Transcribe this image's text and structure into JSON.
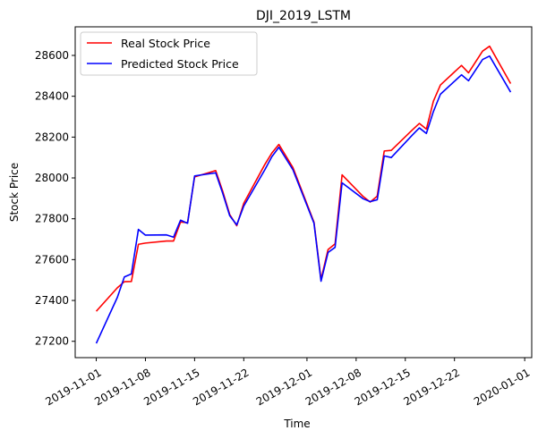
{
  "chart_data": {
    "type": "line",
    "title": "DJI_2019_LSTM",
    "xlabel": "Time",
    "ylabel": "Stock Price",
    "x_type": "date",
    "xlim": [
      "2019-10-29",
      "2020-01-02"
    ],
    "ylim": [
      27120,
      28740
    ],
    "x_ticks": [
      "2019-11-01",
      "2019-11-08",
      "2019-11-15",
      "2019-11-22",
      "2019-12-01",
      "2019-12-08",
      "2019-12-15",
      "2019-12-22",
      "2020-01-01"
    ],
    "x_tick_labels": [
      "2019-11-01",
      "2019-11-08",
      "2019-11-15",
      "2019-11-22",
      "2019-12-01",
      "2019-12-08",
      "2019-12-15",
      "2019-12-22",
      "2020-01-01"
    ],
    "y_ticks": [
      27200,
      27400,
      27600,
      27800,
      28000,
      28200,
      28400,
      28600
    ],
    "y_tick_labels": [
      "27200",
      "27400",
      "27600",
      "27800",
      "28000",
      "28200",
      "28400",
      "28600"
    ],
    "grid": false,
    "legend": {
      "position": "top-left"
    },
    "x": [
      "2019-11-01",
      "2019-11-04",
      "2019-11-05",
      "2019-11-06",
      "2019-11-07",
      "2019-11-08",
      "2019-11-11",
      "2019-11-12",
      "2019-11-13",
      "2019-11-14",
      "2019-11-15",
      "2019-11-18",
      "2019-11-19",
      "2019-11-20",
      "2019-11-21",
      "2019-11-22",
      "2019-11-25",
      "2019-11-26",
      "2019-11-27",
      "2019-11-29",
      "2019-12-02",
      "2019-12-03",
      "2019-12-04",
      "2019-12-05",
      "2019-12-06",
      "2019-12-09",
      "2019-12-10",
      "2019-12-11",
      "2019-12-12",
      "2019-12-13",
      "2019-12-16",
      "2019-12-17",
      "2019-12-18",
      "2019-12-19",
      "2019-12-20",
      "2019-12-23",
      "2019-12-24",
      "2019-12-26",
      "2019-12-27",
      "2019-12-30"
    ],
    "series": [
      {
        "name": "Real Stock Price",
        "color": "#ff0000",
        "values": [
          27347,
          27462,
          27492,
          27493,
          27675,
          27681,
          27691,
          27691,
          27784,
          27781,
          28005,
          28036,
          27935,
          27821,
          27766,
          27876,
          28066,
          28122,
          28164,
          28051,
          27783,
          27503,
          27649,
          27677,
          28015,
          27909,
          27882,
          27911,
          28132,
          28135,
          28235,
          28267,
          28239,
          28376,
          28455,
          28551,
          28515,
          28621,
          28645,
          28462
        ]
      },
      {
        "name": "Predicted Stock Price",
        "color": "#0000ff",
        "values": [
          27190,
          27415,
          27515,
          27530,
          27748,
          27720,
          27721,
          27710,
          27793,
          27778,
          28010,
          28025,
          27925,
          27815,
          27770,
          27862,
          28040,
          28104,
          28150,
          28040,
          27778,
          27494,
          27635,
          27660,
          27976,
          27898,
          27884,
          27893,
          28108,
          28100,
          28210,
          28245,
          28218,
          28325,
          28410,
          28505,
          28476,
          28580,
          28597,
          28420
        ]
      }
    ]
  }
}
